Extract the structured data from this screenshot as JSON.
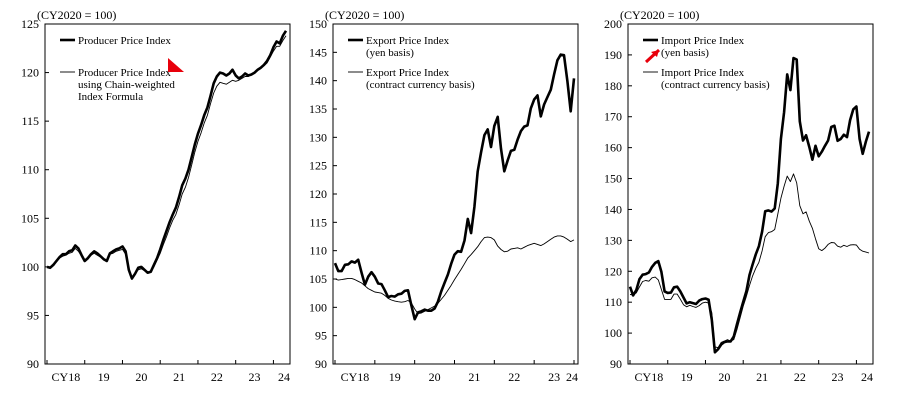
{
  "chart_data": [
    {
      "type": "line",
      "unit_label": "(CY2020 = 100)",
      "ylim": [
        90,
        125
      ],
      "yticks": [
        "90",
        "95",
        "100",
        "105",
        "110",
        "115",
        "120",
        "125"
      ],
      "xticks": [
        "CY18",
        "19",
        "20",
        "21",
        "22",
        "23",
        "24"
      ],
      "x_start": 2018.0,
      "grid": false,
      "series": [
        {
          "name": "Producer Price Index",
          "style": "thick",
          "values": [
            100.0,
            99.9,
            100.2,
            100.6,
            101.0,
            101.3,
            101.3,
            101.6,
            101.7,
            102.2,
            101.9,
            101.2,
            100.6,
            100.9,
            101.3,
            101.6,
            101.4,
            101.1,
            100.8,
            100.6,
            101.4,
            101.6,
            101.8,
            101.9,
            102.1,
            101.6,
            99.7,
            98.8,
            99.3,
            99.9,
            100.0,
            99.7,
            99.4,
            99.5,
            100.2,
            100.9,
            101.8,
            102.8,
            103.7,
            104.6,
            105.4,
            106.1,
            107.2,
            108.4,
            109.1,
            110.0,
            111.3,
            112.6,
            113.7,
            114.6,
            115.6,
            116.4,
            117.6,
            118.9,
            119.6,
            120.0,
            119.9,
            119.7,
            119.9,
            120.3,
            119.7,
            119.4,
            119.6,
            119.9,
            119.7,
            119.8,
            120.0,
            120.3,
            120.5,
            120.8,
            121.2,
            121.8,
            122.6,
            123.2,
            123.0,
            123.8,
            124.3
          ]
        },
        {
          "name": "Producer Price Index using Chain-weighted Index Formula",
          "style": "thin",
          "values": [
            100.0,
            99.9,
            100.2,
            100.5,
            100.9,
            101.1,
            101.2,
            101.4,
            101.5,
            101.9,
            101.6,
            101.1,
            100.6,
            100.9,
            101.2,
            101.4,
            101.2,
            101.0,
            100.7,
            100.6,
            101.3,
            101.4,
            101.6,
            101.7,
            101.8,
            101.3,
            99.6,
            98.7,
            99.3,
            99.7,
            99.8,
            99.6,
            99.4,
            99.5,
            100.0,
            100.7,
            101.4,
            102.3,
            103.1,
            104.0,
            104.8,
            105.4,
            106.4,
            107.5,
            108.2,
            109.2,
            110.5,
            111.8,
            112.9,
            113.8,
            114.8,
            115.6,
            116.8,
            117.9,
            118.6,
            119.0,
            118.9,
            118.8,
            119.0,
            119.2,
            119.1,
            119.2,
            119.4,
            119.6,
            119.6,
            119.8,
            119.9,
            120.2,
            120.4,
            120.7,
            121.0,
            121.6,
            122.2,
            122.7,
            122.7,
            123.3,
            123.8
          ]
        }
      ]
    },
    {
      "type": "line",
      "unit_label": "(CY2020 = 100)",
      "ylim": [
        90,
        150
      ],
      "yticks": [
        "90",
        "95",
        "100",
        "105",
        "110",
        "115",
        "120",
        "125",
        "130",
        "135",
        "140",
        "145",
        "150"
      ],
      "xticks": [
        "CY18",
        "19",
        "20",
        "21",
        "22",
        "23",
        "24"
      ],
      "x_start": 2018.0,
      "grid": false,
      "series": [
        {
          "name": "Export Price Index (yen basis)",
          "style": "thick",
          "values": [
            107.8,
            106.4,
            106.4,
            107.5,
            107.6,
            108.1,
            107.9,
            108.4,
            106.1,
            104.0,
            105.4,
            106.2,
            105.4,
            104.2,
            104.1,
            103.0,
            101.8,
            102.0,
            101.9,
            102.3,
            102.4,
            102.9,
            103.0,
            100.4,
            97.9,
            99.1,
            99.3,
            99.6,
            99.4,
            99.4,
            99.8,
            101.0,
            102.8,
            104.3,
            105.8,
            107.7,
            109.3,
            109.9,
            109.8,
            111.8,
            115.6,
            113.1,
            117.7,
            124.0,
            127.4,
            130.4,
            131.4,
            128.3,
            132.0,
            133.6,
            128.0,
            124.0,
            125.9,
            127.6,
            127.8,
            129.6,
            131.1,
            131.9,
            132.1,
            135.1,
            136.7,
            137.4,
            133.7,
            135.8,
            137.1,
            138.4,
            141.1,
            143.6,
            144.6,
            144.5,
            139.9,
            134.6,
            140.4
          ]
        },
        {
          "name": "Export Price Index (contract currency basis)",
          "style": "thin",
          "values": [
            105.0,
            104.8,
            104.9,
            105.0,
            105.1,
            105.1,
            104.9,
            104.6,
            104.3,
            103.8,
            103.3,
            103.0,
            102.7,
            102.6,
            102.5,
            102.1,
            101.6,
            101.3,
            101.1,
            101.0,
            100.9,
            101.0,
            101.2,
            100.8,
            99.7,
            98.9,
            99.0,
            99.3,
            99.6,
            99.9,
            100.2,
            100.7,
            101.4,
            102.1,
            103.0,
            103.9,
            104.9,
            105.8,
            106.7,
            107.7,
            108.7,
            109.3,
            110.0,
            110.7,
            111.6,
            112.3,
            112.4,
            112.3,
            111.9,
            110.8,
            110.2,
            109.8,
            109.9,
            110.3,
            110.4,
            110.5,
            110.3,
            110.6,
            110.9,
            111.1,
            111.3,
            111.1,
            110.9,
            111.2,
            111.6,
            112.0,
            112.4,
            112.6,
            112.6,
            112.4,
            112.0,
            111.6,
            111.9
          ]
        }
      ]
    },
    {
      "type": "line",
      "unit_label": "(CY2020 = 100)",
      "ylim": [
        90,
        200
      ],
      "yticks": [
        "90",
        "100",
        "110",
        "120",
        "130",
        "140",
        "150",
        "160",
        "170",
        "180",
        "190",
        "200"
      ],
      "xticks": [
        "CY18",
        "19",
        "20",
        "21",
        "22",
        "23",
        "24"
      ],
      "x_start": 2018.0,
      "grid": false,
      "series": [
        {
          "name": "Import Price Index (yen basis)",
          "style": "thick",
          "values": [
            115.0,
            112.2,
            113.9,
            117.4,
            118.9,
            119.1,
            119.6,
            121.4,
            122.7,
            123.3,
            119.8,
            113.5,
            113.0,
            113.1,
            114.8,
            115.0,
            113.5,
            111.5,
            109.6,
            110.0,
            109.7,
            109.4,
            110.5,
            111.0,
            111.2,
            110.8,
            104.3,
            93.8,
            94.8,
            96.3,
            97.1,
            97.3,
            97.3,
            98.9,
            102.8,
            106.6,
            110.1,
            113.6,
            118.8,
            122.2,
            125.5,
            128.1,
            132.8,
            139.4,
            139.7,
            139.3,
            140.3,
            148.4,
            162.8,
            171.5,
            183.7,
            178.6,
            189.0,
            188.5,
            168.5,
            162.3,
            164.0,
            160.2,
            156.1,
            160.6,
            157.2,
            158.7,
            160.6,
            162.3,
            166.7,
            167.1,
            162.2,
            162.8,
            164.2,
            163.4,
            168.9,
            172.4,
            173.3,
            162.8,
            158.0,
            162.0,
            165.2
          ]
        },
        {
          "name": "Import Price Index (contract currency basis)",
          "style": "thin",
          "values": [
            112.5,
            112.4,
            113.0,
            114.9,
            116.7,
            117.0,
            116.8,
            117.9,
            118.1,
            117.2,
            114.1,
            110.9,
            110.9,
            110.9,
            112.6,
            112.6,
            111.0,
            109.2,
            108.5,
            109.0,
            108.6,
            108.3,
            108.9,
            109.7,
            110.0,
            109.7,
            106.6,
            95.5,
            95.3,
            97.0,
            97.4,
            97.9,
            97.4,
            97.9,
            101.1,
            104.9,
            108.7,
            111.9,
            115.4,
            118.5,
            121.0,
            122.9,
            126.6,
            131.2,
            132.5,
            132.8,
            133.5,
            138.5,
            143.6,
            147.5,
            150.8,
            149.0,
            151.5,
            148.6,
            141.2,
            138.6,
            139.2,
            136.2,
            133.9,
            130.5,
            127.3,
            126.7,
            127.5,
            128.7,
            129.3,
            129.2,
            128.1,
            127.8,
            128.4,
            128.0,
            128.5,
            128.6,
            128.5,
            127.1,
            126.5,
            126.2,
            125.9
          ]
        }
      ]
    }
  ],
  "panels": [
    {
      "unit_label": "(CY2020 = 100)",
      "legend": [
        {
          "lines": [
            "Producer Price Index"
          ],
          "style": "thick"
        },
        {
          "lines": [
            "Producer Price Index",
            "using Chain-weighted",
            "Index Formula"
          ],
          "style": "thin"
        }
      ]
    },
    {
      "unit_label": "(CY2020 = 100)",
      "legend": [
        {
          "lines": [
            "Export Price Index",
            "(yen basis)"
          ],
          "style": "thick"
        },
        {
          "lines": [
            "Export Price Index",
            "(contract currency basis)"
          ],
          "style": "thin"
        }
      ]
    },
    {
      "unit_label": "(CY2020 = 100)",
      "legend": [
        {
          "lines": [
            "Import Price Index",
            "(yen basis)"
          ],
          "style": "thick"
        },
        {
          "lines": [
            "Import Price Index",
            "(contract currency basis)"
          ],
          "style": "thin"
        }
      ]
    }
  ],
  "annotations": {
    "arrow_color": "#e8000b"
  }
}
